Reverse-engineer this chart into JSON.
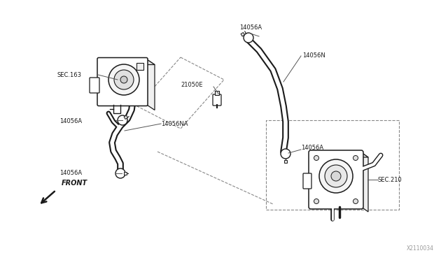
{
  "bg_color": "#ffffff",
  "line_color": "#1a1a1a",
  "label_color": "#1a1a1a",
  "fig_width": 6.4,
  "fig_height": 3.72,
  "dpi": 100,
  "watermark": "X2110034",
  "front_label": "FRONT",
  "labels": {
    "sec163": "SEC.163",
    "sec210": "SEC.210",
    "l14056A_tb": "14056A",
    "l14056A_bot": "14056A",
    "l14056A_top": "14056A",
    "l14056A_wp": "14056A",
    "l14056N": "14056N",
    "l14056NA": "14056NA",
    "l21050E": "21050E"
  }
}
